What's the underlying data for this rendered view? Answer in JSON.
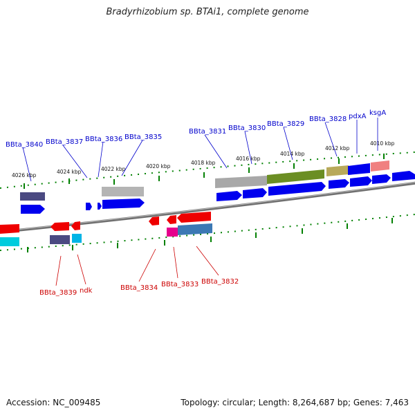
{
  "title": "Bradyrhizobium sp. BTAi1, complete genome",
  "accession": "Accession: NC_009485",
  "topology": "Topology: circular; Length: 8,264,687 bp; Genes: 7,463",
  "colors": {
    "forward_label": "#0000cc",
    "reverse_label": "#cc0000",
    "backbone": "#777777",
    "tick": "#008000"
  },
  "kbp_ticks": [
    "4026 kbp",
    "4024 kbp",
    "4022 kbp",
    "4020 kbp",
    "4018 kbp",
    "4016 kbp",
    "4014 kbp",
    "4012 kbp",
    "4010 kbp"
  ],
  "top_labels": [
    "BBta_3840",
    "BBta_3837",
    "BBta_3836",
    "BBta_3835",
    "BBta_3831",
    "BBta_3830",
    "BBta_3829",
    "BBta_3828",
    "pdxA",
    "ksgA"
  ],
  "bottom_labels": [
    "BBta_3839",
    "ndk",
    "BBta_3834",
    "BBta_3833",
    "BBta_3832"
  ]
}
